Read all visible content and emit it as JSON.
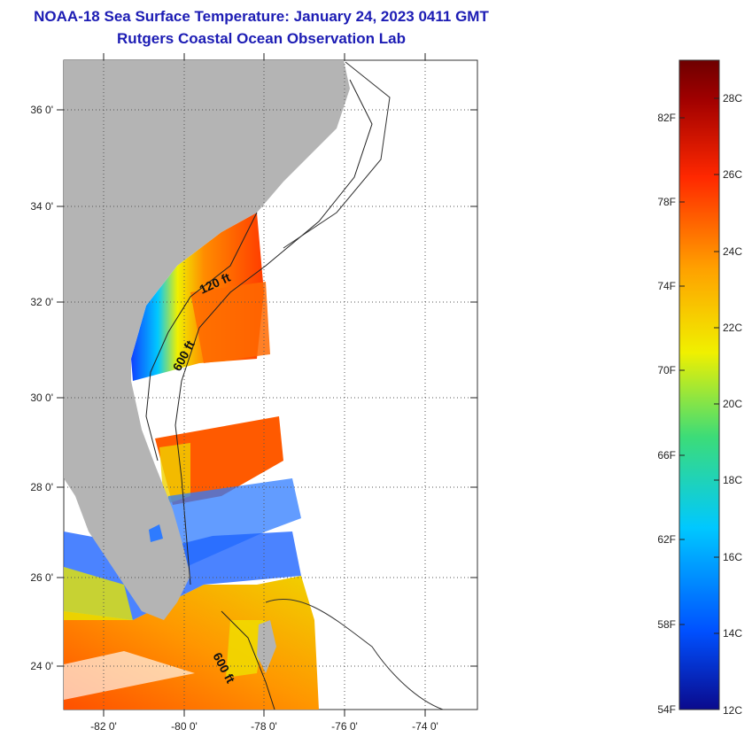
{
  "title": {
    "line1": "NOAA-18 Sea Surface Temperature:  January 24, 2023 0411 GMT",
    "line2": "Rutgers Coastal Ocean Observation Lab"
  },
  "map": {
    "lat_labels": [
      "36 0'",
      "34 0'",
      "32 0'",
      "30 0'",
      "28 0'",
      "26 0'",
      "24 0'"
    ],
    "lon_labels": [
      "-82 0'",
      "-80 0'",
      "-78 0'",
      "-76 0'",
      "-74 0'"
    ],
    "contour_labels": [
      "120 ft",
      "600 ft",
      "600 ft"
    ],
    "colors": {
      "land": "#b4b4b4",
      "cloud": "#ffffff",
      "grid": "#555555"
    }
  },
  "colorbar": {
    "fahrenheit_labels": [
      "82F",
      "78F",
      "74F",
      "70F",
      "66F",
      "62F",
      "58F",
      "54F"
    ],
    "celsius_labels": [
      "28C",
      "26C",
      "24C",
      "22C",
      "20C",
      "18C",
      "16C",
      "14C",
      "12C"
    ],
    "colors": [
      "#0a0a8c",
      "#0050ff",
      "#00c8ff",
      "#3cdc78",
      "#f0f000",
      "#ffa000",
      "#ff2800",
      "#a00000",
      "#6e0000"
    ]
  }
}
